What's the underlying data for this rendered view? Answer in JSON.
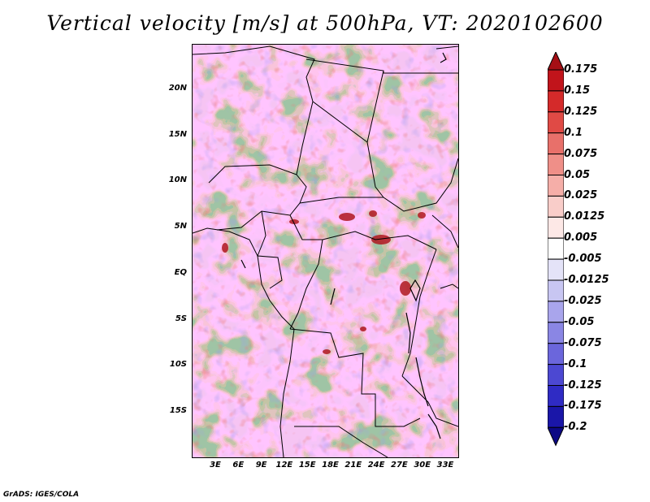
{
  "title": "Vertical velocity [m/s] at 500hPa, VT: 2020102600",
  "footer": "GrADS: IGES/COLA",
  "map": {
    "lat_labels": [
      "20N",
      "15N",
      "10N",
      "5N",
      "EQ",
      "5S",
      "10S",
      "15S"
    ],
    "lon_labels": [
      "3E",
      "6E",
      "9E",
      "12E",
      "15E",
      "18E",
      "21E",
      "24E",
      "27E",
      "30E",
      "33E"
    ]
  },
  "colorbar": {
    "levels": [
      "0.175",
      "0.15",
      "0.125",
      "0.1",
      "0.075",
      "0.05",
      "0.025",
      "0.0125",
      "0.005",
      "-0.005",
      "-0.0125",
      "-0.025",
      "-0.05",
      "-0.075",
      "-0.1",
      "-0.125",
      "-0.175",
      "-0.2"
    ],
    "colors": [
      "#a50f15",
      "#c1141b",
      "#d42a2a",
      "#e04a45",
      "#e8706a",
      "#ef8f88",
      "#f5aea8",
      "#f9cdc9",
      "#fde8e6",
      "#ffffff",
      "#e4e3f8",
      "#c8c6f2",
      "#a9a5ec",
      "#8a86e4",
      "#6b66dc",
      "#4c48d2",
      "#2f2bc4",
      "#1a16a8",
      "#0c0885"
    ]
  }
}
